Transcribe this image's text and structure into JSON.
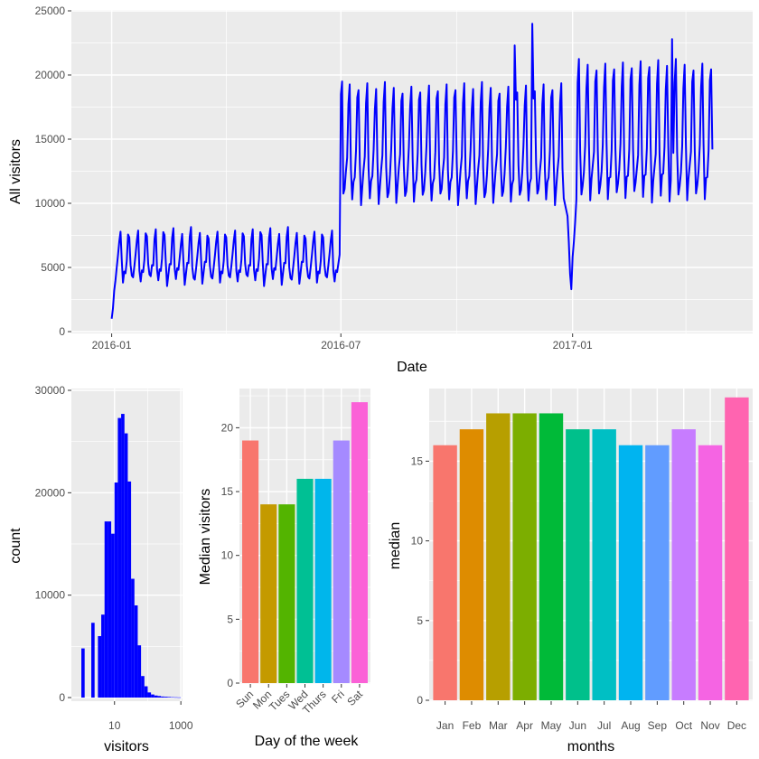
{
  "chart_data": [
    {
      "id": "timeseries",
      "type": "line",
      "xlabel": "Date",
      "ylabel": "All visitors",
      "line_color": "#0000ff",
      "x_start": "2016-01-01",
      "x_end": "2017-04-22",
      "ylim": [
        0,
        25000
      ],
      "y_ticks": [
        0,
        5000,
        10000,
        15000,
        20000,
        25000
      ],
      "x_ticks": [
        {
          "date": "2016-01-01",
          "label": "2016-01"
        },
        {
          "date": "2016-07-01",
          "label": "2016-07"
        },
        {
          "date": "2017-01-01",
          "label": "2017-01"
        }
      ],
      "x_minor_ticks": [
        "2016-04-01",
        "2016-10-01",
        "2017-04-01"
      ],
      "segments": [
        {
          "start": "2016-01-01",
          "end": "2016-06-30",
          "base": 5400,
          "weekly": [
            4000,
            4500,
            5000,
            5600,
            7300,
            7700,
            5200
          ]
        },
        {
          "start": "2016-07-01",
          "end": "2016-12-25",
          "base": 13500,
          "weekly": [
            10300,
            11300,
            12300,
            14000,
            17800,
            19000,
            13000
          ]
        },
        {
          "start": "2017-01-05",
          "end": "2017-04-22",
          "base": 14600,
          "weekly": [
            10500,
            11800,
            12500,
            14200,
            19300,
            20800,
            14200
          ]
        }
      ],
      "special_points": [
        {
          "date": "2016-01-01",
          "value": 1000
        },
        {
          "date": "2016-01-02",
          "value": 1800
        },
        {
          "date": "2016-01-03",
          "value": 3200
        },
        {
          "date": "2016-01-04",
          "value": 4000
        },
        {
          "date": "2016-06-29",
          "value": 5300
        },
        {
          "date": "2016-06-30",
          "value": 6000
        },
        {
          "date": "2016-07-01",
          "value": 18500
        },
        {
          "date": "2016-07-02",
          "value": 19500
        },
        {
          "date": "2016-12-28",
          "value": 9000
        },
        {
          "date": "2016-12-29",
          "value": 7000
        },
        {
          "date": "2016-12-30",
          "value": 4500
        },
        {
          "date": "2016-12-31",
          "value": 3300
        },
        {
          "date": "2017-01-01",
          "value": 5800
        },
        {
          "date": "2017-01-02",
          "value": 7000
        },
        {
          "date": "2017-01-03",
          "value": 8500
        },
        {
          "date": "2017-01-04",
          "value": 10300
        },
        {
          "date": "2016-11-30",
          "value": 24000
        },
        {
          "date": "2016-11-16",
          "value": 22300
        },
        {
          "date": "2017-03-21",
          "value": 22800
        }
      ]
    },
    {
      "id": "histogram",
      "type": "bar",
      "xlabel": "visitors",
      "ylabel": "count",
      "bar_color": "#0000ff",
      "x_scale": "log10",
      "xlim_log10": [
        -0.3,
        3.05
      ],
      "ylim": [
        0,
        30000
      ],
      "y_ticks": [
        0,
        10000,
        20000,
        30000
      ],
      "x_ticks": [
        {
          "log": 1,
          "label": "10"
        },
        {
          "log": 3,
          "label": "1000"
        }
      ],
      "bin_width_log10": 0.1,
      "bins_log10_start": [
        0,
        0.1,
        0.2,
        0.3,
        0.4,
        0.5,
        0.6,
        0.7,
        0.8,
        0.9,
        1.0,
        1.1,
        1.2,
        1.3,
        1.4,
        1.5,
        1.6,
        1.7,
        1.8,
        1.9,
        2.0,
        2.1,
        2.2,
        2.3,
        2.4,
        2.5,
        2.6,
        2.7,
        2.8,
        2.9
      ],
      "counts": [
        4800,
        0,
        0,
        7300,
        0,
        6000,
        8100,
        17200,
        17200,
        16000,
        21000,
        27300,
        27700,
        25800,
        21100,
        11600,
        9000,
        5100,
        2100,
        1100,
        500,
        300,
        200,
        150,
        100,
        80,
        60,
        40,
        30,
        20
      ]
    },
    {
      "id": "dow",
      "type": "bar",
      "xlabel": "Day of the week",
      "ylabel": "Median visitors",
      "categories": [
        "Sun",
        "Mon",
        "Tues",
        "Wed",
        "Thurs",
        "Fri",
        "Sat"
      ],
      "values": [
        19,
        14,
        14,
        16,
        16,
        19,
        22
      ],
      "colors": [
        "#f8766d",
        "#c49a00",
        "#53b400",
        "#00c094",
        "#00b6eb",
        "#a58aff",
        "#fb61d7"
      ],
      "ylim": [
        0,
        23
      ],
      "y_ticks": [
        0,
        5,
        10,
        15,
        20
      ]
    },
    {
      "id": "months",
      "type": "bar",
      "xlabel": "months",
      "ylabel": "median",
      "categories": [
        "Jan",
        "Feb",
        "Mar",
        "Apr",
        "May",
        "Jun",
        "Jul",
        "Aug",
        "Sep",
        "Oct",
        "Nov",
        "Dec"
      ],
      "values": [
        16,
        17,
        18,
        18,
        18,
        17,
        17,
        16,
        16,
        17,
        16,
        19
      ],
      "colors": [
        "#f8766d",
        "#de8c00",
        "#b79f00",
        "#7cae00",
        "#00ba38",
        "#00c08b",
        "#00bfc4",
        "#00b4f0",
        "#619cff",
        "#c77cff",
        "#f564e3",
        "#ff64b0"
      ],
      "ylim": [
        0,
        19.5
      ],
      "y_ticks": [
        0,
        5,
        10,
        15
      ]
    }
  ]
}
